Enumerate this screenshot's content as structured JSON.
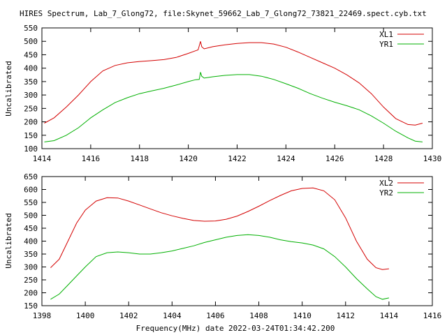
{
  "title": "HIRES Spectrum, Lab_7_Glong72, file:Skynet_59662_Lab_7_Glong72_73821_22469.spect.cyb.txt",
  "xlabel": "Frequency(MHz) date 2022-03-24T01:34:42.200",
  "colors": {
    "red": "#d40000",
    "green": "#00b000"
  },
  "chart_data": [
    {
      "type": "line",
      "ylabel": "Uncalibrated",
      "xlim": [
        1414,
        1430
      ],
      "ylim": [
        100,
        550
      ],
      "xticks": [
        "1414",
        "1416",
        "1418",
        "1420",
        "1422",
        "1424",
        "1426",
        "1428",
        "1430"
      ],
      "yticks": [
        "100",
        "150",
        "200",
        "250",
        "300",
        "350",
        "400",
        "450",
        "500",
        "550"
      ],
      "legend_position": "top-right",
      "series": [
        {
          "name": "XL1",
          "color": "#d40000",
          "points": [
            [
              1414.1,
              195
            ],
            [
              1414.5,
              215
            ],
            [
              1415.0,
              255
            ],
            [
              1415.5,
              300
            ],
            [
              1416.0,
              350
            ],
            [
              1416.5,
              390
            ],
            [
              1417.0,
              410
            ],
            [
              1417.5,
              420
            ],
            [
              1418.0,
              425
            ],
            [
              1418.5,
              428
            ],
            [
              1419.0,
              432
            ],
            [
              1419.5,
              440
            ],
            [
              1420.0,
              455
            ],
            [
              1420.3,
              465
            ],
            [
              1420.4,
              468
            ],
            [
              1420.5,
              500
            ],
            [
              1420.55,
              480
            ],
            [
              1420.65,
              472
            ],
            [
              1421.0,
              480
            ],
            [
              1421.5,
              487
            ],
            [
              1422.0,
              492
            ],
            [
              1422.5,
              495
            ],
            [
              1423.0,
              495
            ],
            [
              1423.5,
              490
            ],
            [
              1424.0,
              478
            ],
            [
              1424.5,
              460
            ],
            [
              1425.0,
              440
            ],
            [
              1425.5,
              420
            ],
            [
              1426.0,
              400
            ],
            [
              1426.5,
              375
            ],
            [
              1427.0,
              345
            ],
            [
              1427.5,
              305
            ],
            [
              1428.0,
              255
            ],
            [
              1428.5,
              212
            ],
            [
              1429.0,
              190
            ],
            [
              1429.3,
              188
            ],
            [
              1429.6,
              195
            ]
          ]
        },
        {
          "name": "YR1",
          "color": "#00b000",
          "points": [
            [
              1414.1,
              125
            ],
            [
              1414.5,
              130
            ],
            [
              1415.0,
              150
            ],
            [
              1415.5,
              178
            ],
            [
              1416.0,
              215
            ],
            [
              1416.5,
              245
            ],
            [
              1417.0,
              272
            ],
            [
              1417.5,
              290
            ],
            [
              1418.0,
              305
            ],
            [
              1418.5,
              315
            ],
            [
              1419.0,
              325
            ],
            [
              1419.5,
              337
            ],
            [
              1420.0,
              350
            ],
            [
              1420.3,
              357
            ],
            [
              1420.45,
              358
            ],
            [
              1420.5,
              385
            ],
            [
              1420.55,
              370
            ],
            [
              1420.65,
              363
            ],
            [
              1421.0,
              368
            ],
            [
              1421.5,
              373
            ],
            [
              1422.0,
              376
            ],
            [
              1422.5,
              376
            ],
            [
              1423.0,
              370
            ],
            [
              1423.5,
              358
            ],
            [
              1424.0,
              342
            ],
            [
              1424.5,
              325
            ],
            [
              1425.0,
              305
            ],
            [
              1425.5,
              288
            ],
            [
              1426.0,
              273
            ],
            [
              1426.5,
              260
            ],
            [
              1427.0,
              245
            ],
            [
              1427.5,
              222
            ],
            [
              1428.0,
              195
            ],
            [
              1428.5,
              165
            ],
            [
              1429.0,
              140
            ],
            [
              1429.3,
              128
            ],
            [
              1429.6,
              125
            ]
          ]
        }
      ]
    },
    {
      "type": "line",
      "ylabel": "Uncalibrated",
      "xlim": [
        1398,
        1416
      ],
      "ylim": [
        150,
        650
      ],
      "xticks": [
        "1398",
        "1400",
        "1402",
        "1404",
        "1406",
        "1408",
        "1410",
        "1412",
        "1414",
        "1416"
      ],
      "yticks": [
        "150",
        "200",
        "250",
        "300",
        "350",
        "400",
        "450",
        "500",
        "550",
        "600",
        "650"
      ],
      "legend_position": "top-right",
      "series": [
        {
          "name": "XL2",
          "color": "#d40000",
          "points": [
            [
              1398.4,
              297
            ],
            [
              1398.8,
              330
            ],
            [
              1399.2,
              400
            ],
            [
              1399.6,
              470
            ],
            [
              1400.0,
              520
            ],
            [
              1400.5,
              555
            ],
            [
              1401.0,
              568
            ],
            [
              1401.5,
              567
            ],
            [
              1402.0,
              555
            ],
            [
              1402.5,
              540
            ],
            [
              1403.0,
              525
            ],
            [
              1403.5,
              510
            ],
            [
              1404.0,
              498
            ],
            [
              1404.5,
              488
            ],
            [
              1405.0,
              480
            ],
            [
              1405.5,
              477
            ],
            [
              1406.0,
              478
            ],
            [
              1406.5,
              485
            ],
            [
              1407.0,
              497
            ],
            [
              1407.5,
              515
            ],
            [
              1408.0,
              535
            ],
            [
              1408.5,
              557
            ],
            [
              1409.0,
              577
            ],
            [
              1409.5,
              595
            ],
            [
              1410.0,
              604
            ],
            [
              1410.5,
              606
            ],
            [
              1411.0,
              595
            ],
            [
              1411.5,
              560
            ],
            [
              1412.0,
              490
            ],
            [
              1412.5,
              400
            ],
            [
              1413.0,
              330
            ],
            [
              1413.4,
              297
            ],
            [
              1413.7,
              290
            ],
            [
              1414.0,
              293
            ]
          ]
        },
        {
          "name": "YR2",
          "color": "#00b000",
          "points": [
            [
              1398.4,
              175
            ],
            [
              1398.8,
              195
            ],
            [
              1399.2,
              230
            ],
            [
              1399.6,
              265
            ],
            [
              1400.0,
              300
            ],
            [
              1400.5,
              340
            ],
            [
              1401.0,
              355
            ],
            [
              1401.5,
              358
            ],
            [
              1402.0,
              355
            ],
            [
              1402.5,
              350
            ],
            [
              1403.0,
              350
            ],
            [
              1403.5,
              355
            ],
            [
              1404.0,
              362
            ],
            [
              1404.5,
              372
            ],
            [
              1405.0,
              382
            ],
            [
              1405.5,
              395
            ],
            [
              1406.0,
              405
            ],
            [
              1406.5,
              415
            ],
            [
              1407.0,
              422
            ],
            [
              1407.5,
              425
            ],
            [
              1408.0,
              422
            ],
            [
              1408.5,
              415
            ],
            [
              1409.0,
              405
            ],
            [
              1409.5,
              398
            ],
            [
              1410.0,
              393
            ],
            [
              1410.5,
              385
            ],
            [
              1411.0,
              370
            ],
            [
              1411.5,
              340
            ],
            [
              1412.0,
              300
            ],
            [
              1412.5,
              255
            ],
            [
              1413.0,
              215
            ],
            [
              1413.4,
              185
            ],
            [
              1413.7,
              175
            ],
            [
              1414.0,
              180
            ]
          ]
        }
      ]
    }
  ]
}
